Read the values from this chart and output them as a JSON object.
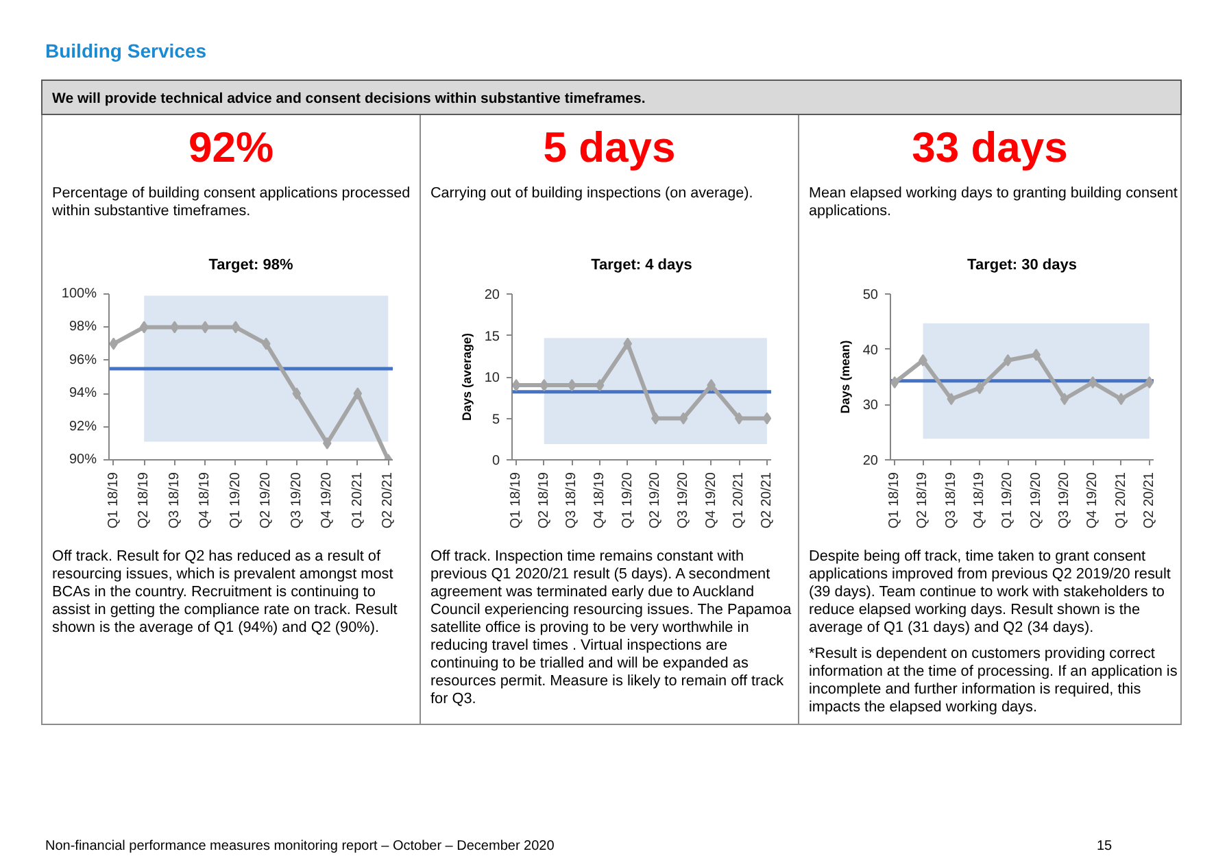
{
  "chart_data": [
    {
      "type": "other",
      "title": "Building Services",
      "subtitle": "We will provide technical advice and consent decisions within substantive timeframes."
    },
    {
      "type": "line",
      "title": "Target: 98%",
      "categories": [
        "Q1 18/19",
        "Q2 18/19",
        "Q3 18/19",
        "Q4 18/19",
        "Q1 19/20",
        "Q2 19/20",
        "Q3 19/20",
        "Q4 19/20",
        "Q1 20/21",
        "Q2 20/21"
      ],
      "series": [
        {
          "color": "#a5a5a5",
          "values": [
            97,
            98,
            98,
            98,
            98,
            97,
            94,
            91,
            94,
            90
          ]
        }
      ],
      "ylim": [
        90,
        100
      ],
      "yticks": [
        {
          "value": 90,
          "label": "90%"
        },
        {
          "value": 92,
          "label": "92%"
        },
        {
          "value": 94,
          "label": "94%"
        },
        {
          "value": 96,
          "label": "96%"
        },
        {
          "value": 98,
          "label": "98%"
        },
        {
          "value": 100,
          "label": "100%"
        }
      ],
      "ref_lines": [
        {
          "axis": "y",
          "value": 95.5,
          "color": "#4472c4"
        }
      ],
      "bands": [
        {
          "axis": "y",
          "from": 91.1,
          "to": 99.9,
          "color": "#dce6f2"
        }
      ],
      "marker": "diamond",
      "line_style": "solid",
      "grid": false,
      "annotations": [
        "92%",
        "Percentage of building consent applications processed within substantive timeframes.",
        "Off track. Result for Q2 has reduced as a result of resourcing issues, which is prevalent amongst most BCAs in the country. Recruitment is continuing to assist in getting the compliance rate on track. Result shown is the average of Q1 (94%) and Q2 (90%)."
      ]
    },
    {
      "type": "line",
      "title": "Target: 4 days",
      "ylabel": "Days (average)",
      "categories": [
        "Q1 18/19",
        "Q2 18/19",
        "Q3 18/19",
        "Q4 18/19",
        "Q1 19/20",
        "Q2 19/20",
        "Q3 19/20",
        "Q4 19/20",
        "Q1 20/21",
        "Q2 20/21"
      ],
      "series": [
        {
          "color": "#a5a5a5",
          "values": [
            9,
            9,
            9,
            9,
            14,
            5,
            5,
            9,
            5,
            5
          ]
        }
      ],
      "ylim": [
        0,
        20
      ],
      "yticks": [
        0,
        5,
        10,
        15,
        20
      ],
      "ref_lines": [
        {
          "axis": "y",
          "value": 8.2,
          "color": "#4472c4"
        }
      ],
      "bands": [
        {
          "axis": "y",
          "from": 1.9,
          "to": 14.7,
          "color": "#dce6f2"
        }
      ],
      "marker": "diamond",
      "line_style": "solid",
      "grid": false,
      "annotations": [
        "5 days",
        "Carrying out of building inspections (on average).",
        "Off track. Inspection time remains constant with previous Q1 2020/21 result (5 days). A secondment agreement was terminated early due to Auckland Council experiencing resourcing issues. The Papamoa satellite office is proving to be very worthwhile in reducing travel times . Virtual inspections are continuing to be trialled and will be expanded as resources permit. Measure is likely to remain off track for Q3."
      ]
    },
    {
      "type": "line",
      "title": "Target: 30 days",
      "ylabel": "Days (mean)",
      "categories": [
        "Q1 18/19",
        "Q2 18/19",
        "Q3 18/19",
        "Q4 18/19",
        "Q1 19/20",
        "Q2 19/20",
        "Q3 19/20",
        "Q4 19/20",
        "Q1 20/21",
        "Q2 20/21"
      ],
      "series": [
        {
          "color": "#a5a5a5",
          "values": [
            34,
            38,
            31,
            33,
            38,
            39,
            31,
            34,
            31,
            34
          ]
        }
      ],
      "ylim": [
        20,
        50
      ],
      "yticks": [
        20,
        30,
        40,
        50
      ],
      "ref_lines": [
        {
          "axis": "y",
          "value": 34.3,
          "color": "#4472c4"
        }
      ],
      "bands": [
        {
          "axis": "y",
          "from": 23.8,
          "to": 44.7,
          "color": "#dce6f2"
        }
      ],
      "marker": "diamond",
      "line_style": "solid",
      "grid": false,
      "annotations": [
        "33 days",
        "Mean elapsed working days to granting building consent applications.",
        "Despite being off track, time taken to grant consent applications improved from previous Q2 2019/20 result (39 days). Team continue to work with stakeholders to reduce elapsed working days. Result shown is the average of Q1 (31 days) and Q2 (34 days).",
        "*Result is dependent on customers providing correct information at the time of processing. If an application is incomplete and further information is required, this impacts the elapsed working days."
      ]
    },
    {
      "type": "other",
      "annotations": [
        "Non-financial performance measures monitoring report – October – December 2020",
        "15"
      ]
    }
  ]
}
